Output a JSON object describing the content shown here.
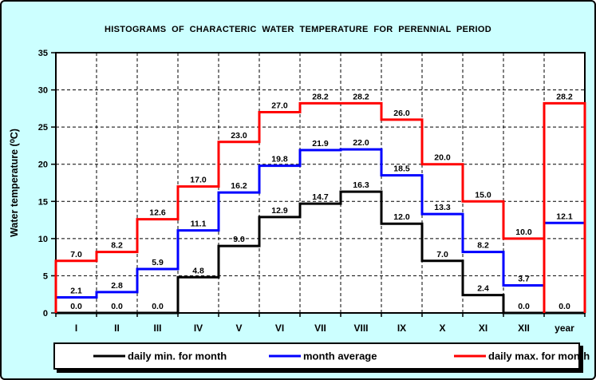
{
  "frame": {
    "background": "#CCFFFF",
    "border_color": "#000000"
  },
  "title": "HISTOGRAMS  OF  CHARACTERIC  WATER  TEMPERATURE  FOR  PERENNIAL  PERIOD",
  "chart_data": {
    "type": "line",
    "subtype": "step-histogram",
    "categories": [
      "I",
      "II",
      "III",
      "IV",
      "V",
      "VI",
      "VII",
      "VIII",
      "IX",
      "X",
      "XI",
      "XII",
      "year"
    ],
    "series": [
      {
        "name": "daily min. for month",
        "color": "#000000",
        "values": [
          0.0,
          0.0,
          0.0,
          4.8,
          9.0,
          12.9,
          14.7,
          16.3,
          12.0,
          7.0,
          2.4,
          0.0,
          0.0
        ]
      },
      {
        "name": "month average",
        "color": "#0000FF",
        "values": [
          2.1,
          2.8,
          5.9,
          11.1,
          16.2,
          19.8,
          21.9,
          22.0,
          18.5,
          13.3,
          8.2,
          3.7,
          12.1
        ]
      },
      {
        "name": "daily max. for month",
        "color": "#FF0000",
        "values": [
          7.0,
          8.2,
          12.6,
          17.0,
          23.0,
          27.0,
          28.2,
          28.2,
          26.0,
          20.0,
          15.0,
          10.0,
          28.2
        ]
      }
    ],
    "title": "HISTOGRAMS  OF  CHARACTERIC  WATER  TEMPERATURE  FOR  PERENNIAL  PERIOD",
    "xlabel": "",
    "ylabel": "Water temperature (⁰C)",
    "ylim": [
      0,
      35
    ],
    "yticks": [
      0,
      5,
      10,
      15,
      20,
      25,
      30,
      35
    ],
    "grid": true,
    "plot_background": "#FFFFFF",
    "legend_position": "bottom"
  },
  "legend": {
    "items": [
      {
        "label": "daily min. for month",
        "color": "#000000"
      },
      {
        "label": "month average",
        "color": "#0000FF"
      },
      {
        "label": "daily max. for month",
        "color": "#FF0000"
      }
    ]
  }
}
